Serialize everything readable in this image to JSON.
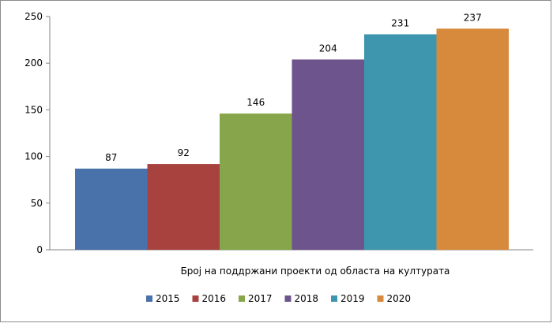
{
  "chart_data": {
    "type": "bar",
    "title": "",
    "xlabel": "Број на поддржани  проекти од областа на културата",
    "ylabel": "",
    "ylim": [
      0,
      250
    ],
    "yticks": [
      "0",
      "50",
      "100",
      "150",
      "200",
      "250"
    ],
    "grid": false,
    "legend_position": "bottom",
    "series": [
      {
        "name": "2015",
        "value": 87,
        "color": "#4a72aa"
      },
      {
        "name": "2016",
        "value": 92,
        "color": "#a8423f"
      },
      {
        "name": "2017",
        "value": 146,
        "color": "#87a54a"
      },
      {
        "name": "2018",
        "value": 204,
        "color": "#6e548d"
      },
      {
        "name": "2019",
        "value": 231,
        "color": "#3d96ae"
      },
      {
        "name": "2020",
        "value": 237,
        "color": "#d88a3c"
      }
    ]
  }
}
